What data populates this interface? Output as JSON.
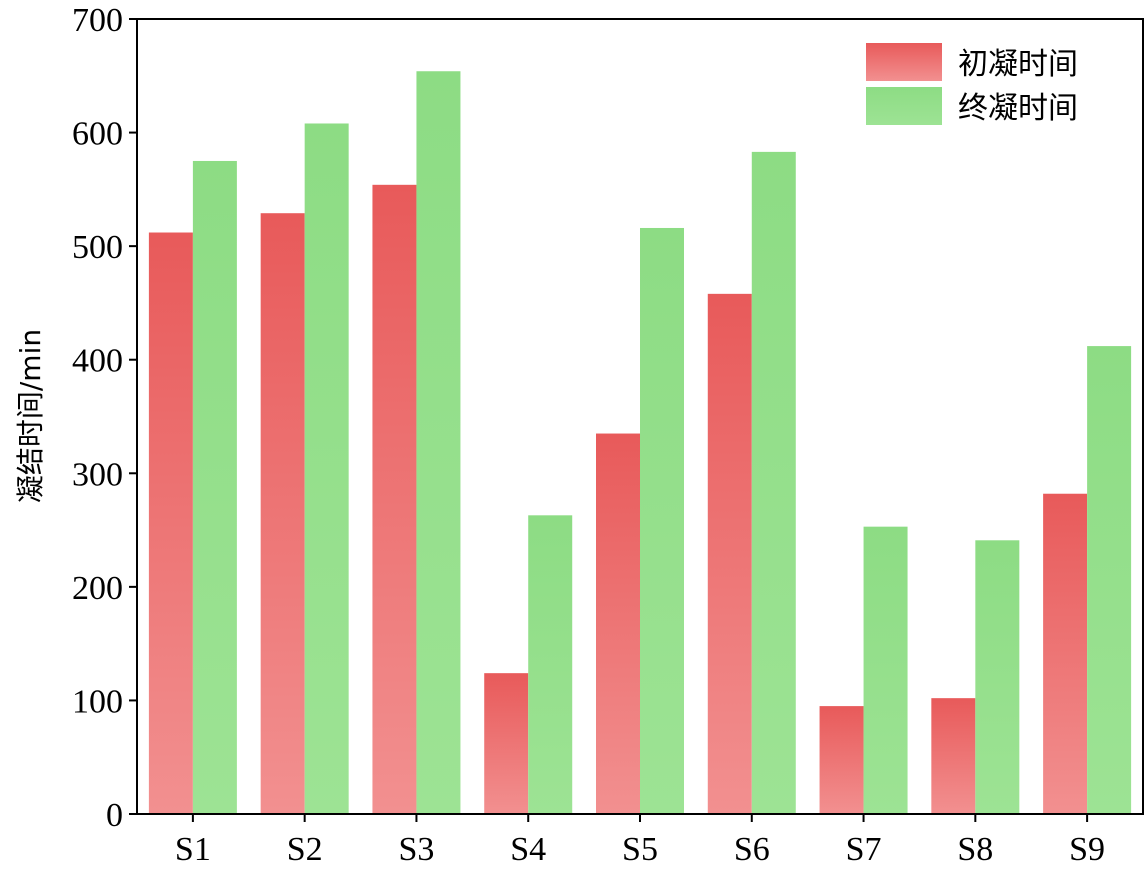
{
  "chart_data": {
    "type": "bar",
    "categories": [
      "S1",
      "S2",
      "S3",
      "S4",
      "S5",
      "S6",
      "S7",
      "S8",
      "S9"
    ],
    "series": [
      {
        "name": "初凝时间",
        "values": [
          512,
          529,
          554,
          124,
          335,
          458,
          95,
          102,
          282
        ]
      },
      {
        "name": "终凝时间",
        "values": [
          575,
          608,
          654,
          263,
          516,
          583,
          253,
          241,
          412
        ]
      }
    ],
    "title": "",
    "xlabel": "",
    "ylabel": "凝结时间/min",
    "ylim": [
      0,
      700
    ],
    "yticks": [
      0,
      100,
      200,
      300,
      400,
      500,
      600,
      700
    ],
    "grid": false,
    "legend_position": "top-right",
    "colors": {
      "initial_top": "#e85a5a",
      "initial_bottom": "#f29090",
      "final_top": "#8ddc84",
      "final_bottom": "#9de394"
    }
  }
}
